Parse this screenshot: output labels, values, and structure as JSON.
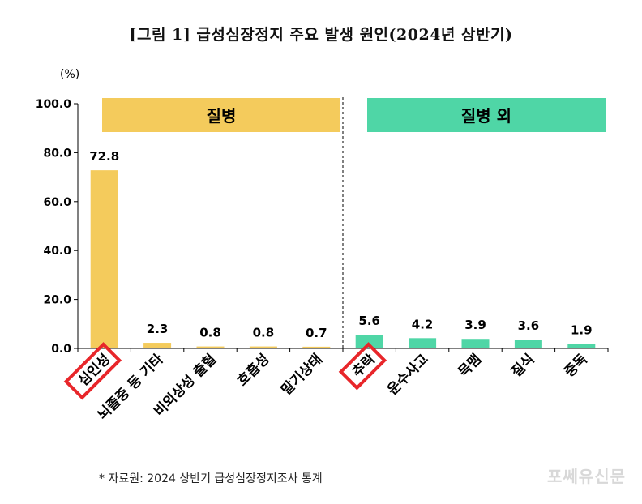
{
  "title": "[그림 1] 급성심장정지 주요 발생 원인(2024년 상반기)",
  "source_note": "* 자료원: 2024 상반기 급성심장정지조사 통계",
  "watermark": "포쎄유신문",
  "colors": {
    "disease": "#F4CB5C",
    "non_disease": "#4FD6A6",
    "highlight": "#E8262A",
    "axis": "#000000"
  },
  "chart_data": {
    "type": "bar",
    "unit_label": "(%)",
    "ylim": [
      0,
      100
    ],
    "yticks": [
      "100.0",
      "80.0",
      "60.0",
      "40.0",
      "20.0",
      "0.0"
    ],
    "grid": false,
    "groups": [
      {
        "label": "질병",
        "color": "#F4CB5C",
        "start": 0,
        "end": 4
      },
      {
        "label": "질병 외",
        "color": "#4FD6A6",
        "start": 5,
        "end": 9
      }
    ],
    "categories": [
      "심인성",
      "뇌졸중 등 기타",
      "비외상성 출혈",
      "호흡성",
      "말기상태",
      "추락",
      "운수사고",
      "목맴",
      "질식",
      "중독"
    ],
    "values": [
      72.8,
      2.3,
      0.8,
      0.8,
      0.7,
      5.6,
      4.2,
      3.9,
      3.6,
      1.9
    ],
    "value_labels": [
      "72.8",
      "2.3",
      "0.8",
      "0.8",
      "0.7",
      "5.6",
      "4.2",
      "3.9",
      "3.6",
      "1.9"
    ],
    "highlighted": [
      "심인성",
      "추락"
    ]
  }
}
